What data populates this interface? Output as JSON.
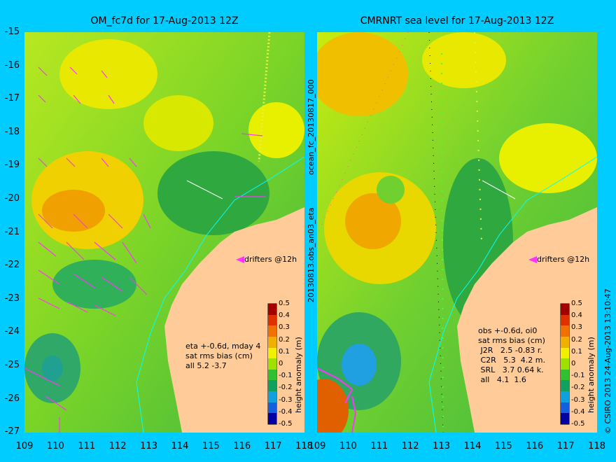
{
  "left_panel": {
    "title": "OM_fc7d for 17-Aug-2013 12Z",
    "side_label": "20130813.obs_an03_eta",
    "stats": "eta +-0.6d, mday 4\nsat rms bias (cm)\nall 5.2 -3.7",
    "drifters_label": "drifters @12h",
    "colorbar_label": "height anomaly (m)"
  },
  "right_panel": {
    "title": "CMRNRT sea level  for 17-Aug-2013 12Z",
    "side_label": "ocean_fc_20130817_000",
    "stats": "obs +-0.6d, oi0\nsat rms bias (cm)\n J2R   2.5 -0.83 r.\n C2R   5.3  4.2 m.\n SRL   3.7 0.64 k.\n all   4.1  1.6",
    "drifters_label": "drifters @12h",
    "colorbar_label": "height anomaly (m)",
    "credit": "© CSIRO 2013   24-Aug-2013 13:10:47"
  },
  "axes": {
    "y_ticks": [
      "-15",
      "-16",
      "-17",
      "-18",
      "-19",
      "-20",
      "-21",
      "-22",
      "-23",
      "-24",
      "-25",
      "-26",
      "-27"
    ],
    "x_ticks": [
      "109",
      "110",
      "111",
      "112",
      "113",
      "114",
      "115",
      "116",
      "117",
      "118"
    ]
  },
  "colorbar": {
    "ticks": [
      "0.5",
      "0.4",
      "0.3",
      "0.2",
      "0.1",
      "0",
      "-0.1",
      "-0.2",
      "-0.3",
      "-0.4",
      "-0.5"
    ],
    "colors": [
      "#a00000",
      "#e03000",
      "#f07000",
      "#f0b000",
      "#f0f000",
      "#a0e000",
      "#30c030",
      "#10a060",
      "#10a0e0",
      "#1060e0",
      "#0000a0"
    ]
  },
  "colors": {
    "background": "#00ccff",
    "land": "#ffcc99",
    "sea_green": "#40c040",
    "sea_yellow": "#d8f000",
    "drifter": "#ff33ff",
    "coast_line": "#00ffff"
  }
}
